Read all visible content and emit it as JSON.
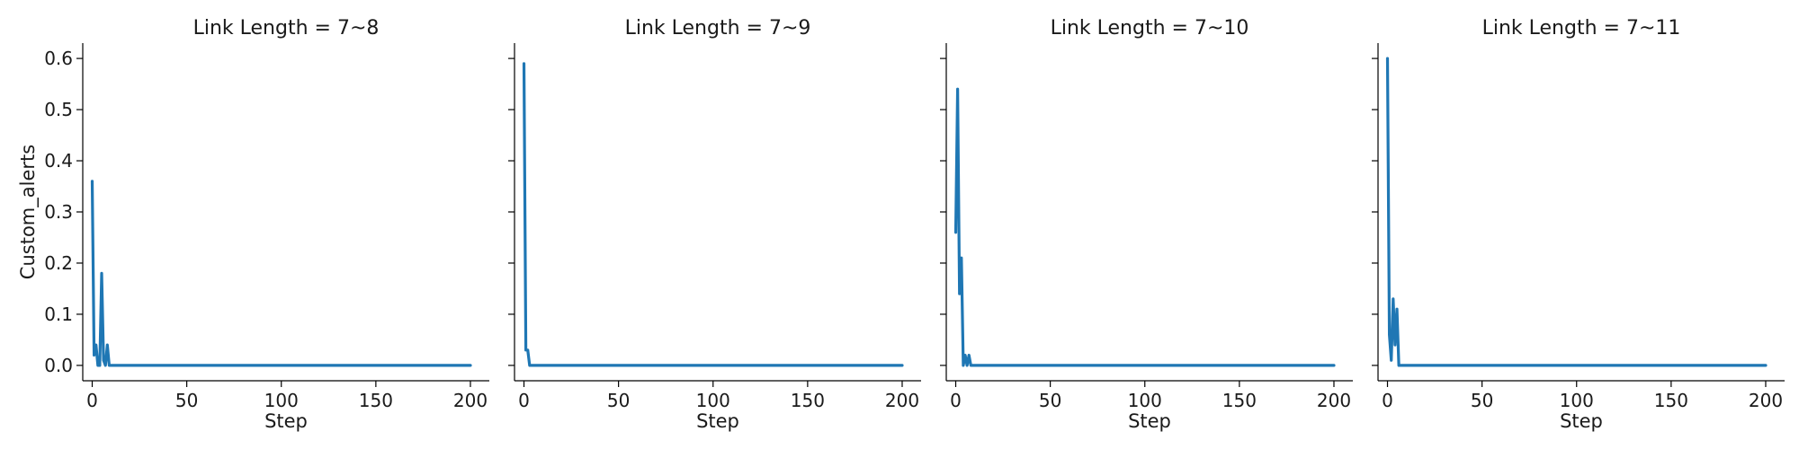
{
  "chart_data": [
    {
      "type": "line",
      "title": "Link Length = 7~8",
      "xlabel": "Step",
      "ylabel": "Custom_alerts",
      "xlim": [
        -5,
        210
      ],
      "ylim": [
        -0.03,
        0.63
      ],
      "xticks": [
        0,
        50,
        100,
        150,
        200
      ],
      "yticks": [
        0.0,
        0.1,
        0.2,
        0.3,
        0.4,
        0.5,
        0.6
      ],
      "color": "#1f77b4",
      "x": [
        0,
        1,
        2,
        3,
        4,
        5,
        6,
        7,
        8,
        9,
        10,
        200
      ],
      "y": [
        0.36,
        0.02,
        0.04,
        0.0,
        0.0,
        0.18,
        0.01,
        0.0,
        0.04,
        0.0,
        0.0,
        0.0
      ]
    },
    {
      "type": "line",
      "title": "Link Length = 7~9",
      "xlabel": "Step",
      "ylabel": "",
      "xlim": [
        -5,
        210
      ],
      "ylim": [
        -0.03,
        0.63
      ],
      "xticks": [
        0,
        50,
        100,
        150,
        200
      ],
      "yticks": [
        0.0,
        0.1,
        0.2,
        0.3,
        0.4,
        0.5,
        0.6
      ],
      "color": "#1f77b4",
      "x": [
        0,
        1,
        2,
        3,
        200
      ],
      "y": [
        0.59,
        0.03,
        0.03,
        0.0,
        0.0
      ]
    },
    {
      "type": "line",
      "title": "Link Length = 7~10",
      "xlabel": "Step",
      "ylabel": "",
      "xlim": [
        -5,
        210
      ],
      "ylim": [
        -0.03,
        0.63
      ],
      "xticks": [
        0,
        50,
        100,
        150,
        200
      ],
      "yticks": [
        0.0,
        0.1,
        0.2,
        0.3,
        0.4,
        0.5,
        0.6
      ],
      "color": "#1f77b4",
      "x": [
        0,
        1,
        2,
        3,
        4,
        5,
        6,
        7,
        8,
        200
      ],
      "y": [
        0.26,
        0.54,
        0.14,
        0.21,
        0.0,
        0.02,
        0.0,
        0.02,
        0.0,
        0.0
      ]
    },
    {
      "type": "line",
      "title": "Link Length = 7~11",
      "xlabel": "Step",
      "ylabel": "",
      "xlim": [
        -5,
        210
      ],
      "ylim": [
        -0.03,
        0.63
      ],
      "xticks": [
        0,
        50,
        100,
        150,
        200
      ],
      "yticks": [
        0.0,
        0.1,
        0.2,
        0.3,
        0.4,
        0.5,
        0.6
      ],
      "color": "#1f77b4",
      "x": [
        0,
        1,
        2,
        3,
        4,
        5,
        6,
        200
      ],
      "y": [
        0.6,
        0.06,
        0.01,
        0.13,
        0.04,
        0.11,
        0.0,
        0.0
      ]
    }
  ]
}
